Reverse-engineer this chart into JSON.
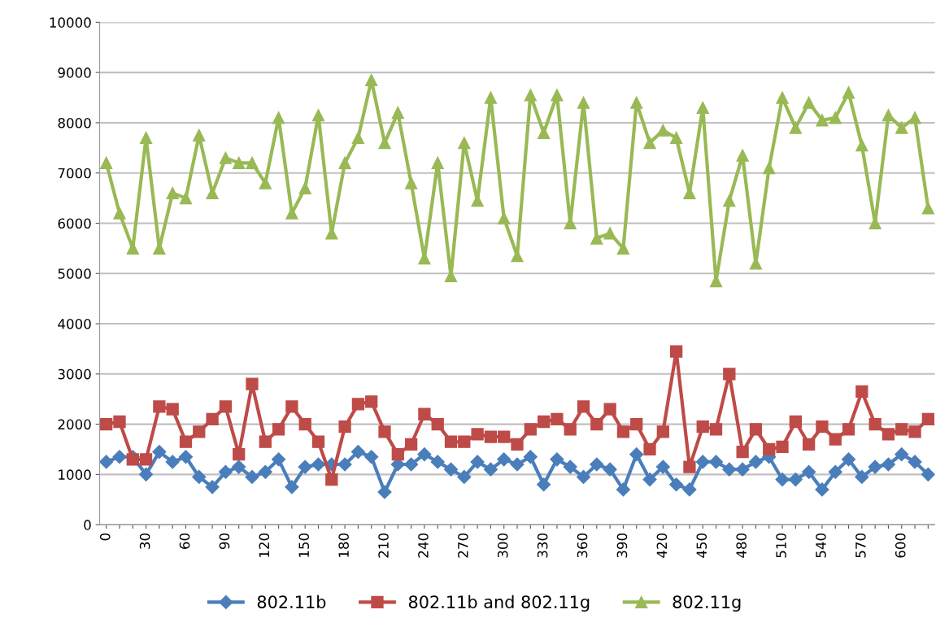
{
  "chart_data": {
    "type": "line",
    "categories": [
      "0",
      null,
      null,
      "30",
      null,
      null,
      "60",
      null,
      null,
      "90",
      null,
      null,
      "120",
      null,
      null,
      "150",
      null,
      null,
      "180",
      null,
      null,
      "210",
      null,
      null,
      "240",
      null,
      null,
      "270",
      null,
      null,
      "300",
      null,
      null,
      "330",
      null,
      null,
      "360",
      null,
      null,
      "390",
      null,
      null,
      "420",
      null,
      null,
      "450",
      null,
      null,
      "480",
      null,
      null,
      "510",
      null,
      null,
      "540",
      null,
      null,
      "570",
      null,
      null,
      "600",
      null,
      null
    ],
    "series": [
      {
        "name": "802.11b",
        "color": "#4a7ebb",
        "marker": "diamond",
        "values": [
          1250,
          1350,
          1350,
          1000,
          1450,
          1250,
          1350,
          950,
          750,
          1050,
          1150,
          950,
          1050,
          1300,
          750,
          1150,
          1200,
          1200,
          1200,
          1450,
          1350,
          650,
          1200,
          1200,
          1400,
          1250,
          1100,
          950,
          1250,
          1100,
          1300,
          1200,
          1350,
          800,
          1300,
          1150,
          950,
          1200,
          1100,
          700,
          1400,
          900,
          1150,
          800,
          700,
          1250,
          1250,
          1100,
          1100,
          1250,
          1350,
          900,
          900,
          1050,
          700,
          1050,
          1300,
          950,
          1150,
          1200,
          1400,
          1250,
          1000
        ]
      },
      {
        "name": "802.11b and 802.11g",
        "color": "#be4b48",
        "marker": "square",
        "values": [
          2000,
          2050,
          1300,
          1300,
          2350,
          2300,
          1650,
          1850,
          2100,
          2350,
          1400,
          2800,
          1650,
          1900,
          2350,
          2000,
          1650,
          900,
          1950,
          2400,
          2450,
          1850,
          1400,
          1600,
          2200,
          2000,
          1650,
          1650,
          1800,
          1750,
          1750,
          1600,
          1900,
          2050,
          2100,
          1900,
          2350,
          2000,
          2300,
          1850,
          2000,
          1500,
          1850,
          3450,
          1150,
          1950,
          1900,
          3000,
          1450,
          1900,
          1500,
          1550,
          2050,
          1600,
          1950,
          1700,
          1900,
          2650,
          2000,
          1800,
          1900,
          1850,
          2100
        ]
      },
      {
        "name": "802.11g",
        "color": "#98b954",
        "marker": "triangle",
        "values": [
          7200,
          6200,
          5500,
          7700,
          5500,
          6600,
          6500,
          7750,
          6600,
          7300,
          7200,
          7200,
          6800,
          8100,
          6200,
          6700,
          8150,
          5800,
          7200,
          7700,
          8850,
          7600,
          8200,
          6800,
          5300,
          7200,
          4950,
          7600,
          6450,
          8500,
          6100,
          5350,
          8550,
          7800,
          8550,
          6000,
          8400,
          5700,
          5800,
          5500,
          8400,
          7600,
          7850,
          7700,
          6600,
          8300,
          4850,
          6450,
          7350,
          5200,
          7100,
          8500,
          7900,
          8400,
          8050,
          8100,
          8600,
          7550,
          6000,
          8150,
          7900,
          8100,
          6300
        ]
      }
    ],
    "ylim": [
      0,
      10000
    ],
    "yticks": [
      0,
      1000,
      2000,
      3000,
      4000,
      5000,
      6000,
      7000,
      8000,
      9000,
      10000
    ],
    "grid": "y",
    "legend": "bottom",
    "line_style": "solid"
  }
}
